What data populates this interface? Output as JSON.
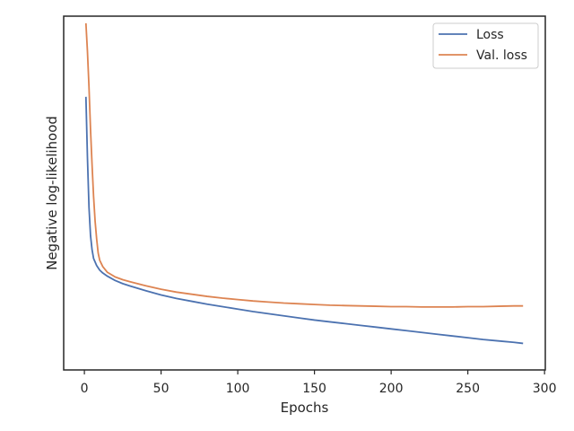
{
  "chart_data": {
    "type": "line",
    "title": "",
    "xlabel": "Epochs",
    "ylabel": "Negative log-likelihood",
    "xlim": [
      -13.5,
      300.5
    ],
    "ylim": [
      0.0,
      1.0
    ],
    "y_tick_labels_shown": false,
    "x_ticks": [
      0,
      50,
      100,
      150,
      200,
      250,
      300
    ],
    "x_tick_labels": [
      "0",
      "50",
      "100",
      "150",
      "200",
      "250",
      "300"
    ],
    "grid": false,
    "legend_position": "top-right",
    "series": [
      {
        "name": "Loss",
        "color": "#4c72b0",
        "points": [
          [
            1,
            0.772
          ],
          [
            2,
            0.6
          ],
          [
            3,
            0.46
          ],
          [
            4,
            0.38
          ],
          [
            5,
            0.34
          ],
          [
            6,
            0.315
          ],
          [
            8,
            0.295
          ],
          [
            10,
            0.282
          ],
          [
            12,
            0.274
          ],
          [
            15,
            0.265
          ],
          [
            20,
            0.253
          ],
          [
            25,
            0.244
          ],
          [
            30,
            0.237
          ],
          [
            40,
            0.224
          ],
          [
            50,
            0.212
          ],
          [
            60,
            0.202
          ],
          [
            70,
            0.194
          ],
          [
            80,
            0.186
          ],
          [
            90,
            0.179
          ],
          [
            100,
            0.172
          ],
          [
            110,
            0.165
          ],
          [
            120,
            0.159
          ],
          [
            130,
            0.153
          ],
          [
            140,
            0.147
          ],
          [
            150,
            0.141
          ],
          [
            160,
            0.136
          ],
          [
            170,
            0.131
          ],
          [
            180,
            0.126
          ],
          [
            190,
            0.121
          ],
          [
            200,
            0.116
          ],
          [
            210,
            0.111
          ],
          [
            220,
            0.106
          ],
          [
            230,
            0.101
          ],
          [
            240,
            0.096
          ],
          [
            250,
            0.091
          ],
          [
            260,
            0.086
          ],
          [
            270,
            0.082
          ],
          [
            280,
            0.078
          ],
          [
            286,
            0.075
          ]
        ]
      },
      {
        "name": "Val. loss",
        "color": "#dd8452",
        "points": [
          [
            1,
            0.98
          ],
          [
            2,
            0.9
          ],
          [
            3,
            0.8
          ],
          [
            4,
            0.68
          ],
          [
            5,
            0.58
          ],
          [
            6,
            0.49
          ],
          [
            7,
            0.42
          ],
          [
            8,
            0.37
          ],
          [
            9,
            0.33
          ],
          [
            10,
            0.31
          ],
          [
            12,
            0.292
          ],
          [
            15,
            0.276
          ],
          [
            20,
            0.263
          ],
          [
            25,
            0.255
          ],
          [
            30,
            0.249
          ],
          [
            40,
            0.238
          ],
          [
            50,
            0.228
          ],
          [
            60,
            0.22
          ],
          [
            70,
            0.214
          ],
          [
            80,
            0.208
          ],
          [
            90,
            0.203
          ],
          [
            100,
            0.199
          ],
          [
            110,
            0.195
          ],
          [
            120,
            0.192
          ],
          [
            130,
            0.189
          ],
          [
            140,
            0.187
          ],
          [
            150,
            0.185
          ],
          [
            160,
            0.183
          ],
          [
            170,
            0.182
          ],
          [
            180,
            0.181
          ],
          [
            190,
            0.18
          ],
          [
            200,
            0.179
          ],
          [
            210,
            0.179
          ],
          [
            220,
            0.178
          ],
          [
            230,
            0.178
          ],
          [
            240,
            0.178
          ],
          [
            250,
            0.179
          ],
          [
            260,
            0.179
          ],
          [
            270,
            0.18
          ],
          [
            280,
            0.181
          ],
          [
            286,
            0.181
          ]
        ]
      }
    ]
  }
}
